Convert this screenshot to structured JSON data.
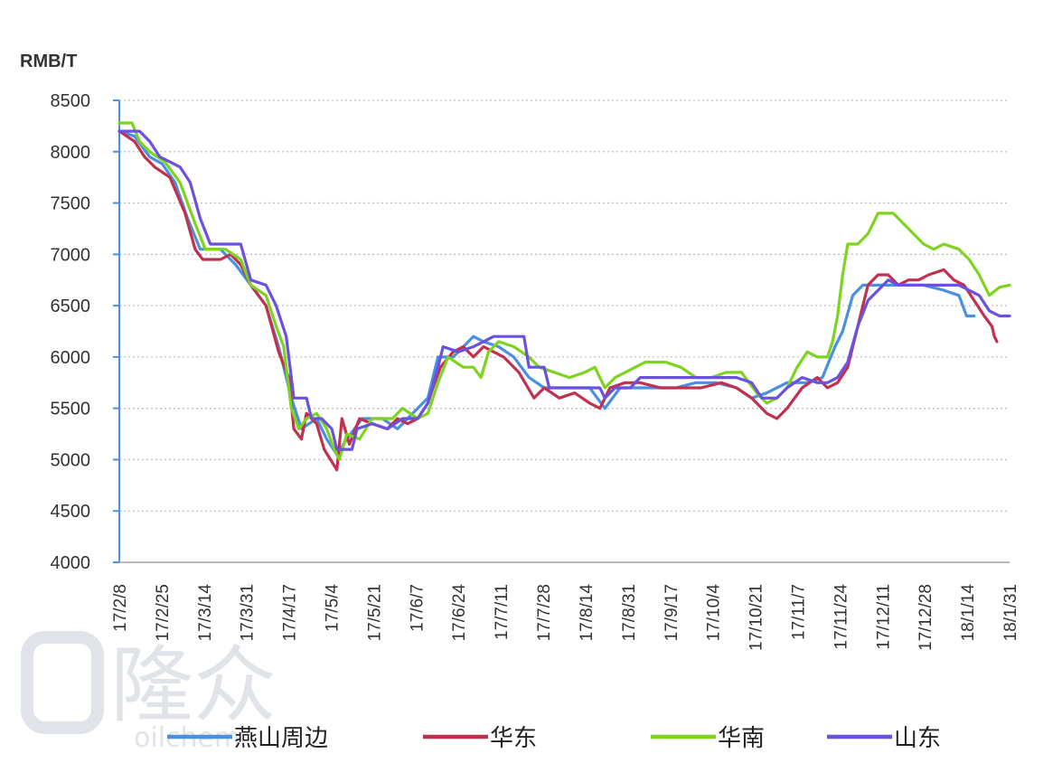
{
  "chart_data": {
    "type": "line",
    "ylabel": "RMB/T",
    "ylim": [
      4000,
      8500
    ],
    "ytick_step": 500,
    "grid": true,
    "legend_position": "bottom",
    "xticks": [
      "17/2/8",
      "17/2/25",
      "17/3/14",
      "17/3/31",
      "17/4/17",
      "17/5/4",
      "17/5/21",
      "17/6/7",
      "17/6/24",
      "17/7/11",
      "17/7/28",
      "17/8/14",
      "17/8/31",
      "17/9/17",
      "17/10/4",
      "17/10/21",
      "17/11/7",
      "17/11/24",
      "17/12/11",
      "17/12/28",
      "18/1/14",
      "18/1/31"
    ],
    "series": [
      {
        "name": "燕山周边",
        "color": "#4a90e2",
        "values": [
          [
            0,
            8200
          ],
          [
            6,
            8150
          ],
          [
            12,
            7950
          ],
          [
            17,
            7880
          ],
          [
            22,
            7700
          ],
          [
            27,
            7350
          ],
          [
            32,
            7050
          ],
          [
            40,
            7050
          ],
          [
            46,
            6900
          ],
          [
            52,
            6700
          ],
          [
            58,
            6500
          ],
          [
            63,
            6100
          ],
          [
            68,
            5600
          ],
          [
            72,
            5300
          ],
          [
            78,
            5400
          ],
          [
            82,
            5200
          ],
          [
            86,
            5050
          ],
          [
            90,
            5200
          ],
          [
            96,
            5400
          ],
          [
            104,
            5400
          ],
          [
            110,
            5300
          ],
          [
            116,
            5450
          ],
          [
            122,
            5600
          ],
          [
            126,
            6000
          ],
          [
            132,
            6000
          ],
          [
            136,
            6100
          ],
          [
            140,
            6200
          ],
          [
            144,
            6150
          ],
          [
            150,
            6100
          ],
          [
            156,
            6000
          ],
          [
            162,
            5800
          ],
          [
            168,
            5700
          ],
          [
            174,
            5700
          ],
          [
            180,
            5700
          ],
          [
            186,
            5700
          ],
          [
            192,
            5500
          ],
          [
            198,
            5700
          ],
          [
            204,
            5700
          ],
          [
            212,
            5700
          ],
          [
            220,
            5700
          ],
          [
            228,
            5750
          ],
          [
            236,
            5750
          ],
          [
            244,
            5700
          ],
          [
            250,
            5600
          ],
          [
            256,
            5650
          ],
          [
            264,
            5750
          ],
          [
            272,
            5750
          ],
          [
            278,
            5800
          ],
          [
            283,
            6100
          ],
          [
            286,
            6250
          ],
          [
            290,
            6600
          ],
          [
            294,
            6700
          ],
          [
            298,
            6700
          ],
          [
            304,
            6700
          ],
          [
            310,
            6700
          ],
          [
            318,
            6700
          ],
          [
            326,
            6650
          ],
          [
            332,
            6600
          ],
          [
            335,
            6400
          ],
          [
            338,
            6400
          ]
        ]
      },
      {
        "name": "华东",
        "color": "#c0314f",
        "values": [
          [
            0,
            8200
          ],
          [
            6,
            8100
          ],
          [
            10,
            7950
          ],
          [
            14,
            7850
          ],
          [
            20,
            7750
          ],
          [
            26,
            7400
          ],
          [
            30,
            7050
          ],
          [
            33,
            6950
          ],
          [
            40,
            6950
          ],
          [
            44,
            7000
          ],
          [
            48,
            6900
          ],
          [
            52,
            6700
          ],
          [
            58,
            6500
          ],
          [
            63,
            6050
          ],
          [
            67,
            5800
          ],
          [
            69,
            5300
          ],
          [
            72,
            5200
          ],
          [
            74,
            5450
          ],
          [
            78,
            5350
          ],
          [
            81,
            5100
          ],
          [
            84,
            4980
          ],
          [
            86,
            4900
          ],
          [
            88,
            5400
          ],
          [
            91,
            5150
          ],
          [
            95,
            5400
          ],
          [
            100,
            5350
          ],
          [
            106,
            5300
          ],
          [
            110,
            5400
          ],
          [
            114,
            5350
          ],
          [
            118,
            5400
          ],
          [
            122,
            5550
          ],
          [
            124,
            5700
          ],
          [
            127,
            5900
          ],
          [
            132,
            6050
          ],
          [
            136,
            6100
          ],
          [
            140,
            6000
          ],
          [
            144,
            6100
          ],
          [
            148,
            6050
          ],
          [
            152,
            6000
          ],
          [
            158,
            5850
          ],
          [
            164,
            5600
          ],
          [
            168,
            5700
          ],
          [
            174,
            5600
          ],
          [
            180,
            5650
          ],
          [
            186,
            5550
          ],
          [
            190,
            5500
          ],
          [
            194,
            5700
          ],
          [
            200,
            5750
          ],
          [
            206,
            5750
          ],
          [
            214,
            5700
          ],
          [
            222,
            5700
          ],
          [
            230,
            5700
          ],
          [
            238,
            5750
          ],
          [
            244,
            5700
          ],
          [
            250,
            5600
          ],
          [
            256,
            5450
          ],
          [
            260,
            5400
          ],
          [
            264,
            5500
          ],
          [
            270,
            5700
          ],
          [
            276,
            5800
          ],
          [
            280,
            5700
          ],
          [
            284,
            5750
          ],
          [
            288,
            5900
          ],
          [
            290,
            6100
          ],
          [
            294,
            6500
          ],
          [
            296,
            6700
          ],
          [
            300,
            6800
          ],
          [
            304,
            6800
          ],
          [
            308,
            6700
          ],
          [
            312,
            6750
          ],
          [
            316,
            6750
          ],
          [
            320,
            6800
          ],
          [
            326,
            6850
          ],
          [
            330,
            6750
          ],
          [
            334,
            6700
          ],
          [
            338,
            6550
          ],
          [
            342,
            6400
          ],
          [
            345,
            6300
          ],
          [
            346,
            6200
          ],
          [
            347,
            6150
          ]
        ]
      },
      {
        "name": "华南",
        "color": "#7ed321",
        "values": [
          [
            0,
            8280
          ],
          [
            5,
            8280
          ],
          [
            8,
            8100
          ],
          [
            12,
            8000
          ],
          [
            18,
            7900
          ],
          [
            24,
            7700
          ],
          [
            30,
            7300
          ],
          [
            34,
            7050
          ],
          [
            42,
            7050
          ],
          [
            48,
            6950
          ],
          [
            52,
            6700
          ],
          [
            58,
            6600
          ],
          [
            62,
            6300
          ],
          [
            65,
            6100
          ],
          [
            68,
            5500
          ],
          [
            71,
            5300
          ],
          [
            74,
            5400
          ],
          [
            78,
            5450
          ],
          [
            82,
            5300
          ],
          [
            85,
            5100
          ],
          [
            87,
            5000
          ],
          [
            90,
            5250
          ],
          [
            95,
            5200
          ],
          [
            100,
            5400
          ],
          [
            108,
            5400
          ],
          [
            112,
            5500
          ],
          [
            118,
            5400
          ],
          [
            122,
            5450
          ],
          [
            126,
            5750
          ],
          [
            130,
            6000
          ],
          [
            136,
            5900
          ],
          [
            140,
            5900
          ],
          [
            143,
            5800
          ],
          [
            146,
            6050
          ],
          [
            150,
            6150
          ],
          [
            156,
            6100
          ],
          [
            162,
            6000
          ],
          [
            166,
            5900
          ],
          [
            172,
            5850
          ],
          [
            178,
            5800
          ],
          [
            184,
            5850
          ],
          [
            188,
            5900
          ],
          [
            192,
            5700
          ],
          [
            196,
            5800
          ],
          [
            200,
            5850
          ],
          [
            204,
            5900
          ],
          [
            208,
            5950
          ],
          [
            216,
            5950
          ],
          [
            222,
            5900
          ],
          [
            228,
            5800
          ],
          [
            234,
            5800
          ],
          [
            240,
            5850
          ],
          [
            246,
            5850
          ],
          [
            252,
            5650
          ],
          [
            256,
            5550
          ],
          [
            260,
            5600
          ],
          [
            264,
            5700
          ],
          [
            268,
            5900
          ],
          [
            272,
            6050
          ],
          [
            276,
            6000
          ],
          [
            280,
            6000
          ],
          [
            282,
            6150
          ],
          [
            284,
            6400
          ],
          [
            286,
            6800
          ],
          [
            288,
            7100
          ],
          [
            292,
            7100
          ],
          [
            296,
            7200
          ],
          [
            300,
            7400
          ],
          [
            306,
            7400
          ],
          [
            310,
            7300
          ],
          [
            314,
            7200
          ],
          [
            318,
            7100
          ],
          [
            322,
            7050
          ],
          [
            326,
            7100
          ],
          [
            332,
            7050
          ],
          [
            336,
            6950
          ],
          [
            340,
            6800
          ],
          [
            344,
            6600
          ],
          [
            348,
            6680
          ],
          [
            352,
            6700
          ]
        ]
      },
      {
        "name": "山东",
        "color": "#6a51e0",
        "values": [
          [
            0,
            8200
          ],
          [
            8,
            8200
          ],
          [
            12,
            8100
          ],
          [
            16,
            7950
          ],
          [
            20,
            7900
          ],
          [
            24,
            7850
          ],
          [
            28,
            7700
          ],
          [
            32,
            7350
          ],
          [
            36,
            7100
          ],
          [
            48,
            7100
          ],
          [
            52,
            6750
          ],
          [
            58,
            6700
          ],
          [
            62,
            6500
          ],
          [
            66,
            6200
          ],
          [
            69,
            5600
          ],
          [
            74,
            5600
          ],
          [
            76,
            5400
          ],
          [
            80,
            5400
          ],
          [
            84,
            5300
          ],
          [
            86,
            5100
          ],
          [
            92,
            5100
          ],
          [
            94,
            5300
          ],
          [
            100,
            5350
          ],
          [
            106,
            5300
          ],
          [
            112,
            5400
          ],
          [
            118,
            5400
          ],
          [
            122,
            5550
          ],
          [
            126,
            5900
          ],
          [
            128,
            6100
          ],
          [
            134,
            6050
          ],
          [
            140,
            6100
          ],
          [
            144,
            6150
          ],
          [
            148,
            6200
          ],
          [
            152,
            6200
          ],
          [
            156,
            6200
          ],
          [
            160,
            6200
          ],
          [
            162,
            5900
          ],
          [
            168,
            5900
          ],
          [
            170,
            5700
          ],
          [
            186,
            5700
          ],
          [
            190,
            5700
          ],
          [
            192,
            5600
          ],
          [
            196,
            5700
          ],
          [
            202,
            5700
          ],
          [
            206,
            5800
          ],
          [
            212,
            5800
          ],
          [
            220,
            5800
          ],
          [
            228,
            5800
          ],
          [
            238,
            5800
          ],
          [
            244,
            5800
          ],
          [
            250,
            5750
          ],
          [
            254,
            5600
          ],
          [
            260,
            5600
          ],
          [
            264,
            5700
          ],
          [
            270,
            5800
          ],
          [
            276,
            5750
          ],
          [
            280,
            5750
          ],
          [
            284,
            5800
          ],
          [
            288,
            5950
          ],
          [
            292,
            6300
          ],
          [
            296,
            6550
          ],
          [
            300,
            6650
          ],
          [
            304,
            6750
          ],
          [
            308,
            6700
          ],
          [
            312,
            6700
          ],
          [
            318,
            6700
          ],
          [
            326,
            6700
          ],
          [
            332,
            6700
          ],
          [
            336,
            6650
          ],
          [
            340,
            6600
          ],
          [
            344,
            6450
          ],
          [
            348,
            6400
          ],
          [
            352,
            6400
          ]
        ]
      }
    ]
  },
  "watermark": {
    "logo_glyph": "隆众",
    "sub_text": "oilchem"
  }
}
